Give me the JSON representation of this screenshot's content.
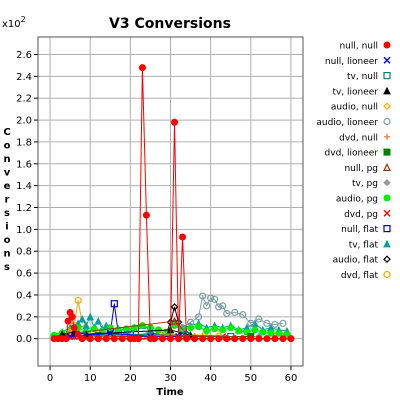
{
  "chart_data": {
    "type": "line",
    "title": "V3 Conversions",
    "xlabel": "Time",
    "ylabel": "Conversions",
    "y_multiplier": "x10",
    "y_exponent": "2",
    "xlim": [
      -3,
      63
    ],
    "ylim": [
      -0.25,
      2.76
    ],
    "x_ticks": [
      "0",
      "10",
      "20",
      "30",
      "40",
      "50",
      "60"
    ],
    "y_ticks": [
      "0.0",
      "0.2",
      "0.4",
      "0.6",
      "0.8",
      "1.0",
      "1.2",
      "1.4",
      "1.6",
      "1.8",
      "2.0",
      "2.2",
      "2.4",
      "2.6"
    ],
    "grid": true,
    "legend_position": "right",
    "series": [
      {
        "name": "null, null",
        "color": "#ff0000",
        "marker": "filled-circle",
        "x": [
          1,
          2,
          3,
          4,
          4.5,
          5,
          5.5,
          6,
          7,
          8,
          10,
          12,
          14,
          16,
          18,
          20,
          21,
          22,
          23,
          24,
          25,
          26,
          28,
          30,
          31,
          32,
          33,
          34,
          36,
          38,
          40,
          42,
          44,
          46,
          48,
          50,
          52,
          54,
          56,
          58,
          60
        ],
        "y": [
          0,
          0,
          0,
          0,
          0.16,
          0.24,
          0.2,
          0.1,
          0.04,
          0,
          0,
          0,
          0,
          0,
          0,
          0,
          0,
          0,
          2.48,
          1.13,
          0,
          0,
          0,
          0,
          1.98,
          0,
          0.93,
          0,
          0,
          0,
          0,
          0,
          0,
          0,
          0,
          0,
          0,
          0,
          0,
          0,
          0
        ]
      },
      {
        "name": "null, lioneer",
        "color": "#0000ff",
        "marker": "x",
        "x": [
          5,
          15,
          25,
          32
        ],
        "y": [
          0.02,
          0.05,
          0.02,
          0.02
        ]
      },
      {
        "name": "tv, null",
        "color": "#008080",
        "marker": "open-square",
        "x": [
          8,
          20,
          34,
          45
        ],
        "y": [
          0.03,
          0.04,
          0.03,
          0.02
        ]
      },
      {
        "name": "tv, lioneer",
        "color": "#000000",
        "marker": "filled-triangle",
        "x": [
          3,
          6,
          9,
          30,
          35
        ],
        "y": [
          0.04,
          0.06,
          0.04,
          0.08,
          0.03
        ]
      },
      {
        "name": "audio, null",
        "color": "#ffaa00",
        "marker": "open-diamond",
        "x": [
          5,
          16,
          28,
          42
        ],
        "y": [
          0.06,
          0.04,
          0.04,
          0.03
        ]
      },
      {
        "name": "audio, lioneer",
        "color": "#7a9ea3",
        "marker": "open-circle",
        "x": [
          33,
          35,
          37,
          38,
          39,
          40,
          41,
          42,
          43,
          44,
          46,
          48,
          50,
          52,
          54,
          56,
          58
        ],
        "y": [
          0.1,
          0.15,
          0.2,
          0.39,
          0.3,
          0.37,
          0.36,
          0.29,
          0.3,
          0.23,
          0.24,
          0.22,
          0.14,
          0.18,
          0.14,
          0.13,
          0.14
        ]
      },
      {
        "name": "dvd, null",
        "color": "#ff8040",
        "marker": "plus",
        "x": [
          7,
          22,
          38
        ],
        "y": [
          0.03,
          0.03,
          0.03
        ]
      },
      {
        "name": "dvd, lioneer",
        "color": "#008000",
        "marker": "filled-square",
        "x": [
          4,
          12,
          26,
          50
        ],
        "y": [
          0.02,
          0.03,
          0.02,
          0.02
        ]
      },
      {
        "name": "null, pg",
        "color": "#993300",
        "marker": "open-triangle",
        "x": [
          6,
          31,
          34
        ],
        "y": [
          0.05,
          0.16,
          0.05
        ]
      },
      {
        "name": "tv, pg",
        "color": "#999999",
        "marker": "filled-diamond",
        "x": [
          10,
          24,
          36,
          52
        ],
        "y": [
          0.02,
          0.03,
          0.02,
          0.02
        ]
      },
      {
        "name": "audio, pg",
        "color": "#00ee00",
        "marker": "filled-circle",
        "x": [
          1,
          3,
          5,
          7,
          9,
          11,
          13,
          15,
          17,
          19,
          21,
          23,
          25,
          27,
          29,
          31,
          33,
          35,
          37,
          39,
          41,
          43,
          45,
          47,
          49,
          51,
          53,
          55,
          57,
          59
        ],
        "y": [
          0.03,
          0.05,
          0.08,
          0.1,
          0.06,
          0.09,
          0.07,
          0.1,
          0.08,
          0.09,
          0.1,
          0.12,
          0.1,
          0.08,
          0.06,
          0.12,
          0.08,
          0.1,
          0.11,
          0.07,
          0.09,
          0.08,
          0.1,
          0.07,
          0.06,
          0.08,
          0.06,
          0.05,
          0.05,
          0.04
        ]
      },
      {
        "name": "dvd, pg",
        "color": "#ff0000",
        "marker": "x",
        "x": [
          6,
          24,
          43
        ],
        "y": [
          0.02,
          0.02,
          0.02
        ]
      },
      {
        "name": "null, flat",
        "color": "#0000cc",
        "marker": "open-square",
        "x": [
          15,
          16,
          17
        ],
        "y": [
          0.05,
          0.32,
          0.05
        ]
      },
      {
        "name": "tv, flat",
        "color": "#00a0a0",
        "marker": "filled-triangle",
        "x": [
          1,
          3,
          5,
          7,
          8,
          9,
          10,
          11,
          12,
          13,
          14,
          15,
          17,
          19,
          21,
          23,
          25,
          27,
          29,
          31,
          33,
          35,
          37,
          39,
          41,
          43,
          45,
          47,
          49,
          51,
          53,
          55,
          57,
          59
        ],
        "y": [
          0.03,
          0.06,
          0.1,
          0.14,
          0.18,
          0.12,
          0.2,
          0.1,
          0.16,
          0.09,
          0.12,
          0.08,
          0.09,
          0.07,
          0.1,
          0.12,
          0.08,
          0.06,
          0.05,
          0.16,
          0.1,
          0.12,
          0.14,
          0.1,
          0.12,
          0.1,
          0.12,
          0.08,
          0.1,
          0.14,
          0.08,
          0.1,
          0.08,
          0.07
        ]
      },
      {
        "name": "audio, flat",
        "color": "#000000",
        "marker": "open-diamond",
        "x": [
          29,
          30,
          31,
          32,
          33
        ],
        "y": [
          0.05,
          0.15,
          0.29,
          0.15,
          0.05
        ]
      },
      {
        "name": "dvd, flat",
        "color": "#ffa500",
        "marker": "open-circle",
        "x": [
          6,
          7,
          8
        ],
        "y": [
          0.12,
          0.35,
          0.14
        ]
      }
    ]
  }
}
